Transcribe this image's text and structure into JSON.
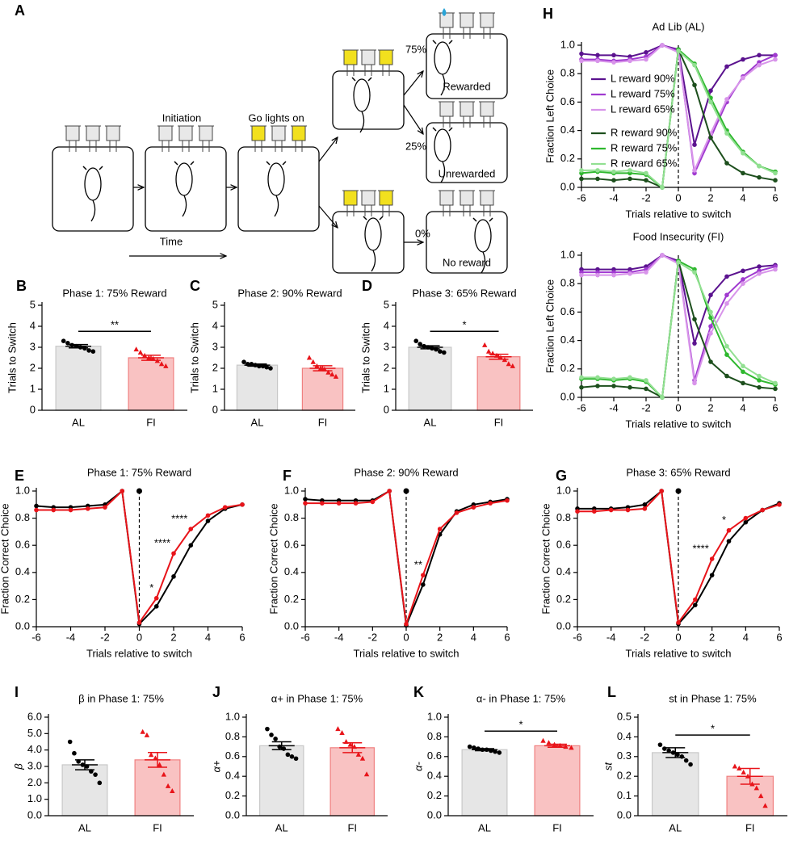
{
  "diagram": {
    "panel": "A",
    "steps": [
      "Initiation",
      "Go lights on"
    ],
    "time_label": "Time",
    "outcomes": [
      {
        "probability": "75%",
        "label": "Rewarded",
        "color": "#29a3d6"
      },
      {
        "probability": "25%",
        "label": "Unrewarded",
        "color": "#e8141a"
      },
      {
        "probability": "0%",
        "label": "No reward",
        "color": "#e8141a"
      }
    ]
  },
  "chart_data": [
    {
      "type": "bar",
      "panel": "B",
      "title": "Phase 1: 75% Reward",
      "y_label": "Trials to Switch",
      "categories": [
        "AL",
        "FI"
      ],
      "values": [
        3.05,
        2.5
      ],
      "errors": [
        0.08,
        0.12
      ],
      "points": [
        [
          3.3,
          3.2,
          3.1,
          3.05,
          3.0,
          2.95,
          2.85,
          2.8
        ],
        [
          2.9,
          2.75,
          2.6,
          2.5,
          2.45,
          2.35,
          2.2,
          2.1
        ]
      ],
      "colors": [
        "#e6e6e6",
        "#f9c2c2"
      ],
      "edge_colors": [
        "#c8c8c8",
        "#f08080"
      ],
      "point_colors": [
        "#000000",
        "#e8141a"
      ],
      "significance": "**",
      "ylim": [
        0,
        5
      ],
      "yticks": [
        0,
        1,
        2,
        3,
        4,
        5
      ]
    },
    {
      "type": "bar",
      "panel": "C",
      "title": "Phase 2: 90% Reward",
      "y_label": "Trials to Switch",
      "categories": [
        "AL",
        "FI"
      ],
      "values": [
        2.15,
        2.0
      ],
      "errors": [
        0.05,
        0.12
      ],
      "points": [
        [
          2.3,
          2.2,
          2.2,
          2.15,
          2.1,
          2.1,
          2.05,
          2.0
        ],
        [
          2.5,
          2.3,
          2.1,
          2.0,
          1.95,
          1.8,
          1.7,
          1.6
        ]
      ],
      "colors": [
        "#e6e6e6",
        "#f9c2c2"
      ],
      "edge_colors": [
        "#c8c8c8",
        "#f08080"
      ],
      "point_colors": [
        "#000000",
        "#e8141a"
      ],
      "ylim": [
        0,
        5
      ],
      "yticks": [
        0,
        1,
        2,
        3,
        4,
        5
      ]
    },
    {
      "type": "bar",
      "panel": "D",
      "title": "Phase 3: 65% Reward",
      "y_label": "Trials to Switch",
      "categories": [
        "AL",
        "FI"
      ],
      "values": [
        3.0,
        2.55
      ],
      "errors": [
        0.07,
        0.12
      ],
      "points": [
        [
          3.3,
          3.15,
          3.05,
          3.0,
          2.95,
          2.9,
          2.8,
          2.75
        ],
        [
          3.1,
          2.8,
          2.7,
          2.6,
          2.5,
          2.4,
          2.2,
          2.1
        ]
      ],
      "colors": [
        "#e6e6e6",
        "#f9c2c2"
      ],
      "edge_colors": [
        "#c8c8c8",
        "#f08080"
      ],
      "point_colors": [
        "#000000",
        "#e8141a"
      ],
      "significance": "*",
      "ylim": [
        0,
        5
      ],
      "yticks": [
        0,
        1,
        2,
        3,
        4,
        5
      ]
    },
    {
      "type": "line",
      "panel": "E",
      "title": "Phase 1: 75% Reward",
      "y_label": "Fraction Correct Choice",
      "x_label": "Trials relative to switch",
      "x": [
        -6,
        -5,
        -4,
        -3,
        -2,
        -1,
        0,
        1,
        2,
        3,
        4,
        5,
        6
      ],
      "series": [
        {
          "color": "#000000",
          "values": [
            0.89,
            0.88,
            0.88,
            0.89,
            0.9,
            1.0,
            0.02,
            0.15,
            0.37,
            0.6,
            0.78,
            0.87,
            0.9
          ]
        },
        {
          "color": "#e8141a",
          "values": [
            0.86,
            0.86,
            0.86,
            0.87,
            0.88,
            1.0,
            0.03,
            0.21,
            0.54,
            0.72,
            0.82,
            0.88,
            0.9
          ]
        }
      ],
      "annotations": [
        {
          "text": "*",
          "x": 1
        },
        {
          "text": "****",
          "x": 2
        },
        {
          "text": "****",
          "x": 3
        }
      ],
      "switch_line": true,
      "switch_dot": true,
      "xlim": [
        -6,
        6
      ],
      "xticks": [
        -6,
        -4,
        -2,
        0,
        2,
        4,
        6
      ],
      "ylim": [
        0,
        1
      ],
      "yticks": [
        {
          "value": 0,
          "label": "0.0"
        },
        0.2,
        0.4,
        0.6,
        0.8,
        {
          "value": 1,
          "label": "1.0"
        }
      ]
    },
    {
      "type": "line",
      "panel": "F",
      "title": "Phase 2: 90% Reward",
      "y_label": "Fraction Correct Choice",
      "x_label": "Trials relative to switch",
      "x": [
        -6,
        -5,
        -4,
        -3,
        -2,
        -1,
        0,
        1,
        2,
        3,
        4,
        5,
        6
      ],
      "series": [
        {
          "color": "#000000",
          "values": [
            0.94,
            0.93,
            0.93,
            0.93,
            0.93,
            1.0,
            0.01,
            0.31,
            0.68,
            0.85,
            0.9,
            0.92,
            0.94
          ]
        },
        {
          "color": "#e8141a",
          "values": [
            0.91,
            0.91,
            0.91,
            0.91,
            0.92,
            1.0,
            0.02,
            0.38,
            0.72,
            0.84,
            0.88,
            0.91,
            0.93
          ]
        }
      ],
      "annotations": [
        {
          "text": "**",
          "x": 1
        }
      ],
      "switch_line": true,
      "switch_dot": true,
      "xlim": [
        -6,
        6
      ],
      "xticks": [
        -6,
        -4,
        -2,
        0,
        2,
        4,
        6
      ],
      "ylim": [
        0,
        1
      ],
      "yticks": [
        {
          "value": 0,
          "label": "0.0"
        },
        0.2,
        0.4,
        0.6,
        0.8,
        {
          "value": 1,
          "label": "1.0"
        }
      ]
    },
    {
      "type": "line",
      "panel": "G",
      "title": "Phase 3: 65% Reward",
      "y_label": "Fraction Correct Choice",
      "x_label": "Trials relative to switch",
      "x": [
        -6,
        -5,
        -4,
        -3,
        -2,
        -1,
        0,
        1,
        2,
        3,
        4,
        5,
        6
      ],
      "series": [
        {
          "color": "#000000",
          "values": [
            0.87,
            0.87,
            0.87,
            0.88,
            0.9,
            1.0,
            0.02,
            0.16,
            0.38,
            0.63,
            0.77,
            0.86,
            0.91
          ]
        },
        {
          "color": "#e8141a",
          "values": [
            0.85,
            0.85,
            0.86,
            0.86,
            0.87,
            1.0,
            0.03,
            0.2,
            0.5,
            0.71,
            0.8,
            0.86,
            0.9
          ]
        }
      ],
      "annotations": [
        {
          "text": "****",
          "x": 2
        },
        {
          "text": "*",
          "x": 3
        }
      ],
      "switch_line": true,
      "switch_dot": true,
      "xlim": [
        -6,
        6
      ],
      "xticks": [
        -6,
        -4,
        -2,
        0,
        2,
        4,
        6
      ],
      "ylim": [
        0,
        1
      ],
      "yticks": [
        {
          "value": 0,
          "label": "0.0"
        },
        0.2,
        0.4,
        0.6,
        0.8,
        {
          "value": 1,
          "label": "1.0"
        }
      ]
    },
    {
      "type": "line",
      "panel": "H",
      "title": "Ad Lib (AL)",
      "title_color": "#000000",
      "y_label": "Fraction Left Choice",
      "x_label": "Trials relative to switch",
      "x": [
        -6,
        -5,
        -4,
        -3,
        -2,
        -1,
        0,
        1,
        2,
        3,
        4,
        5,
        6
      ],
      "series": [
        {
          "name": "L reward 90%",
          "color": "#5b138f",
          "values": [
            0.94,
            0.93,
            0.93,
            0.92,
            0.95,
            1.0,
            0.97,
            0.3,
            0.68,
            0.85,
            0.9,
            0.93,
            0.93
          ]
        },
        {
          "name": "L reward 75%",
          "color": "#a03ad0",
          "values": [
            0.9,
            0.9,
            0.89,
            0.9,
            0.92,
            1.0,
            0.96,
            0.1,
            0.35,
            0.6,
            0.78,
            0.88,
            0.93
          ]
        },
        {
          "name": "L reward 65%",
          "color": "#d894ea",
          "values": [
            0.89,
            0.89,
            0.88,
            0.89,
            0.9,
            1.0,
            0.95,
            0.12,
            0.38,
            0.62,
            0.77,
            0.86,
            0.9
          ]
        },
        {
          "name": "R reward 90%",
          "color": "#1d4f1d",
          "values": [
            0.06,
            0.06,
            0.05,
            0.06,
            0.05,
            0.0,
            0.97,
            0.72,
            0.35,
            0.17,
            0.1,
            0.07,
            0.05
          ]
        },
        {
          "name": "R reward 75%",
          "color": "#2fb82f",
          "values": [
            0.1,
            0.11,
            0.1,
            0.1,
            0.09,
            0.0,
            0.97,
            0.87,
            0.63,
            0.4,
            0.25,
            0.15,
            0.11
          ]
        },
        {
          "name": "R reward 65%",
          "color": "#92e092",
          "values": [
            0.12,
            0.12,
            0.11,
            0.12,
            0.1,
            0.0,
            0.96,
            0.86,
            0.6,
            0.38,
            0.24,
            0.15,
            0.1
          ]
        }
      ],
      "legend": "left",
      "switch_line": true,
      "xlim": [
        -6,
        6
      ],
      "xticks": [
        -6,
        -4,
        -2,
        0,
        2,
        4,
        6
      ],
      "ylim": [
        0,
        1
      ],
      "yticks": [
        {
          "value": 0,
          "label": "0.0"
        },
        0.2,
        0.4,
        0.6,
        0.8,
        {
          "value": 1,
          "label": "1.0"
        }
      ]
    },
    {
      "type": "line",
      "title": "Food Insecurity (FI)",
      "title_color": "#e8141a",
      "y_label": "Fraction Left Choice",
      "x_label": "Trials relative to switch",
      "x": [
        -6,
        -5,
        -4,
        -3,
        -2,
        -1,
        0,
        1,
        2,
        3,
        4,
        5,
        6
      ],
      "series": [
        {
          "color": "#5b138f",
          "values": [
            0.9,
            0.9,
            0.9,
            0.9,
            0.92,
            1.0,
            0.96,
            0.38,
            0.72,
            0.85,
            0.89,
            0.92,
            0.93
          ]
        },
        {
          "color": "#a03ad0",
          "values": [
            0.88,
            0.88,
            0.88,
            0.88,
            0.9,
            1.0,
            0.95,
            0.12,
            0.5,
            0.72,
            0.83,
            0.89,
            0.92
          ]
        },
        {
          "color": "#d894ea",
          "values": [
            0.86,
            0.86,
            0.86,
            0.87,
            0.88,
            1.0,
            0.94,
            0.1,
            0.45,
            0.66,
            0.8,
            0.87,
            0.9
          ]
        },
        {
          "color": "#1d4f1d",
          "values": [
            0.07,
            0.08,
            0.08,
            0.07,
            0.06,
            0.0,
            0.96,
            0.55,
            0.25,
            0.15,
            0.1,
            0.07,
            0.06
          ]
        },
        {
          "color": "#2fb82f",
          "values": [
            0.13,
            0.13,
            0.12,
            0.13,
            0.11,
            0.0,
            0.96,
            0.9,
            0.56,
            0.3,
            0.18,
            0.12,
            0.09
          ]
        },
        {
          "color": "#92e092",
          "values": [
            0.14,
            0.14,
            0.13,
            0.14,
            0.12,
            0.0,
            0.95,
            0.88,
            0.6,
            0.36,
            0.22,
            0.15,
            0.1
          ]
        }
      ],
      "switch_line": true,
      "xlim": [
        -6,
        6
      ],
      "xticks": [
        -6,
        -4,
        -2,
        0,
        2,
        4,
        6
      ],
      "ylim": [
        0,
        1
      ],
      "yticks": [
        {
          "value": 0,
          "label": "0.0"
        },
        0.2,
        0.4,
        0.6,
        0.8,
        {
          "value": 1,
          "label": "1.0"
        }
      ]
    },
    {
      "type": "bar",
      "panel": "I",
      "title": "β in Phase 1: 75%",
      "y_label": "β",
      "categories": [
        "AL",
        "FI"
      ],
      "values": [
        3.1,
        3.4
      ],
      "errors": [
        0.3,
        0.45
      ],
      "points": [
        [
          4.5,
          3.8,
          3.3,
          3.1,
          3.0,
          2.7,
          2.5,
          2.0
        ],
        [
          5.1,
          4.9,
          3.7,
          3.5,
          3.1,
          2.5,
          1.8,
          1.5
        ]
      ],
      "colors": [
        "#e6e6e6",
        "#f9c2c2"
      ],
      "edge_colors": [
        "#c8c8c8",
        "#f08080"
      ],
      "point_colors": [
        "#000000",
        "#e8141a"
      ],
      "ylim": [
        0,
        6
      ],
      "yticks": [
        {
          "value": 0,
          "label": "0.0"
        },
        {
          "value": 1,
          "label": "1.0"
        },
        {
          "value": 2,
          "label": "2.0"
        },
        {
          "value": 3,
          "label": "3.0"
        },
        {
          "value": 4,
          "label": "4.0"
        },
        {
          "value": 5,
          "label": "5.0"
        },
        {
          "value": 6,
          "label": "6.0"
        }
      ]
    },
    {
      "type": "bar",
      "panel": "J",
      "title": "α+ in Phase 1: 75%",
      "y_label": "α+",
      "categories": [
        "AL",
        "FI"
      ],
      "values": [
        0.71,
        0.69
      ],
      "errors": [
        0.04,
        0.05
      ],
      "points": [
        [
          0.88,
          0.82,
          0.78,
          0.7,
          0.68,
          0.62,
          0.6,
          0.58
        ],
        [
          0.88,
          0.84,
          0.75,
          0.72,
          0.7,
          0.62,
          0.58,
          0.42
        ]
      ],
      "colors": [
        "#e6e6e6",
        "#f9c2c2"
      ],
      "edge_colors": [
        "#c8c8c8",
        "#f08080"
      ],
      "point_colors": [
        "#000000",
        "#e8141a"
      ],
      "ylim": [
        0,
        1
      ],
      "yticks": [
        {
          "value": 0,
          "label": "0.0"
        },
        0.2,
        0.4,
        0.6,
        0.8,
        {
          "value": 1,
          "label": "1.0"
        }
      ]
    },
    {
      "type": "bar",
      "panel": "K",
      "title": "α- in Phase 1: 75%",
      "y_label": "α-",
      "categories": [
        "AL",
        "FI"
      ],
      "values": [
        0.67,
        0.71
      ],
      "errors": [
        0.01,
        0.015
      ],
      "points": [
        [
          0.7,
          0.69,
          0.68,
          0.67,
          0.67,
          0.66,
          0.65,
          0.64
        ],
        [
          0.76,
          0.74,
          0.72,
          0.71,
          0.7,
          0.69
        ]
      ],
      "colors": [
        "#e6e6e6",
        "#f9c2c2"
      ],
      "edge_colors": [
        "#c8c8c8",
        "#f08080"
      ],
      "point_colors": [
        "#000000",
        "#e8141a"
      ],
      "significance": "*",
      "ylim": [
        0,
        1
      ],
      "yticks": [
        {
          "value": 0,
          "label": "0.0"
        },
        0.2,
        0.4,
        0.6,
        0.8,
        {
          "value": 1,
          "label": "1.0"
        }
      ]
    },
    {
      "type": "bar",
      "panel": "L",
      "title": "st in Phase 1: 75%",
      "y_label": "st",
      "categories": [
        "AL",
        "FI"
      ],
      "values": [
        0.32,
        0.2
      ],
      "errors": [
        0.025,
        0.04
      ],
      "points": [
        [
          0.36,
          0.34,
          0.33,
          0.32,
          0.31,
          0.3,
          0.28,
          0.26
        ],
        [
          0.25,
          0.24,
          0.22,
          0.2,
          0.16,
          0.14,
          0.1,
          0.05
        ]
      ],
      "colors": [
        "#e6e6e6",
        "#f9c2c2"
      ],
      "edge_colors": [
        "#c8c8c8",
        "#f08080"
      ],
      "point_colors": [
        "#000000",
        "#e8141a"
      ],
      "significance": "*",
      "ylim": [
        0,
        0.5
      ],
      "yticks": [
        {
          "value": 0,
          "label": "0.0"
        },
        0.1,
        0.2,
        0.3,
        0.4,
        0.5
      ]
    }
  ]
}
